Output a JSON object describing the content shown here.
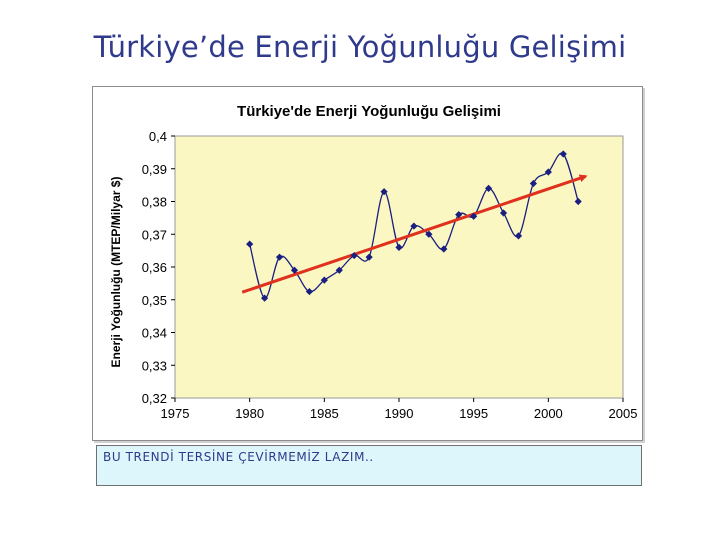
{
  "slide": {
    "title": "Türkiye’de Enerji Yoğunluğu Gelişimi"
  },
  "note": {
    "text": "BU TRENDİ TERSİNE ÇEVİRMEMİZ LAZIM.."
  },
  "colors": {
    "plot_background": "#fbf7c3",
    "series_line": "#1a1f80",
    "marker": "#1a1f80",
    "trend_line": "#e0301e",
    "slide_title": "#2f3a8c",
    "note_background": "#dcf6fb"
  },
  "chart_data": {
    "type": "line",
    "title": "Türkiye'de Enerji Yoğunluğu Gelişimi",
    "xlabel": "",
    "ylabel": "Enerji Yoğunluğu (MTEP/Milyar $)",
    "xlim": [
      1975,
      2005
    ],
    "ylim": [
      0.32,
      0.4
    ],
    "x_ticks": [
      "1975",
      "1980",
      "1985",
      "1990",
      "1995",
      "2000",
      "2005"
    ],
    "y_ticks": [
      "0,32",
      "0,33",
      "0,34",
      "0,35",
      "0,36",
      "0,37",
      "0,38",
      "0,39",
      "0,4"
    ],
    "grid": false,
    "smoothed": true,
    "series": [
      {
        "x": [
          1980,
          1981,
          1982,
          1983,
          1984,
          1985,
          1986,
          1987,
          1988,
          1989,
          1990,
          1991,
          1992,
          1993,
          1994,
          1995,
          1996,
          1997,
          1998,
          1999,
          2000,
          2001,
          2002
        ],
        "values": [
          0.367,
          0.3505,
          0.363,
          0.359,
          0.3525,
          0.356,
          0.359,
          0.3635,
          0.363,
          0.383,
          0.366,
          0.3725,
          0.37,
          0.3655,
          0.376,
          0.3755,
          0.384,
          0.3765,
          0.3695,
          0.3855,
          0.389,
          0.3945,
          0.38
        ],
        "markers": "diamond"
      }
    ],
    "trend": {
      "x": [
        1979.5,
        2002.5
      ],
      "values": [
        0.3523,
        0.3877
      ],
      "arrow": true
    }
  }
}
